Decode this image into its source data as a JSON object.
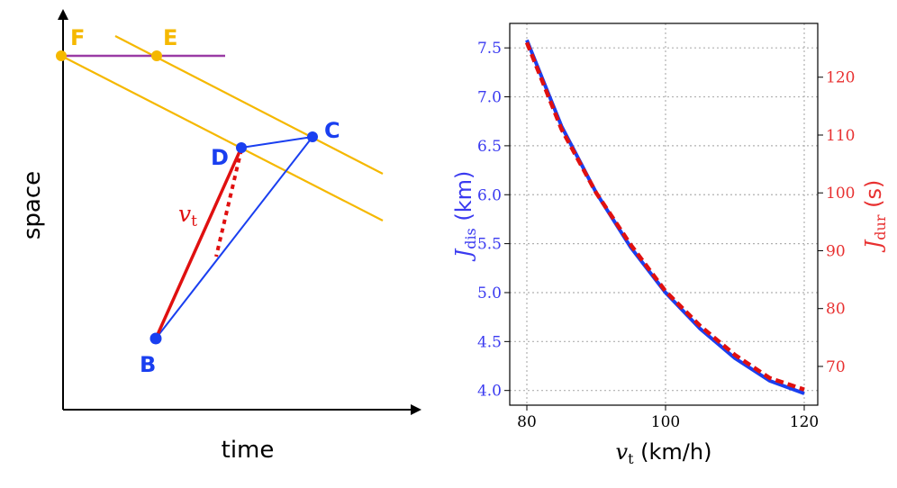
{
  "colors": {
    "orange": "#F5B800",
    "purple": "#9A3BA5",
    "blue": "#1A3FF0",
    "red": "#E01010",
    "blue_text": "#3A3AF0",
    "red_text": "#E83030",
    "grid": "#B0B0B0"
  },
  "diagram": {
    "xlabel": "time",
    "ylabel": "space",
    "points": {
      "F": "F",
      "E": "E",
      "C": "C",
      "D": "D",
      "B": "B"
    },
    "vt_main": "v",
    "vt_sub": "t"
  },
  "chart_data": {
    "type": "line",
    "x_min": 80,
    "x_max": 120,
    "x": [
      80,
      85,
      90,
      95,
      100,
      105,
      110,
      115,
      120
    ],
    "series": [
      {
        "name": "J_dis",
        "axis": "left",
        "unit": "km",
        "color": "#1A3FF0",
        "style": "solid",
        "values": [
          7.58,
          6.7,
          6.02,
          5.46,
          5.0,
          4.63,
          4.33,
          4.1,
          3.97
        ]
      },
      {
        "name": "J_dur",
        "axis": "right",
        "unit": "s",
        "color": "#E01010",
        "style": "dashed",
        "values": [
          126.0,
          111.0,
          100.0,
          91.0,
          83.0,
          77.0,
          72.0,
          68.0,
          66.0
        ]
      }
    ],
    "x_ticks": [
      "80",
      "100",
      "120"
    ],
    "x_tick_values": [
      80,
      100,
      120
    ],
    "y_left_range": [
      3.85,
      7.75
    ],
    "y_left_ticks": [
      "4.0",
      "4.5",
      "5.0",
      "5.5",
      "6.0",
      "6.5",
      "7.0",
      "7.5"
    ],
    "y_left_tick_values": [
      4.0,
      4.5,
      5.0,
      5.5,
      6.0,
      6.5,
      7.0,
      7.5
    ],
    "y_right_range": [
      63.3,
      129.3
    ],
    "y_right_ticks": [
      "70",
      "80",
      "90",
      "100",
      "110",
      "120"
    ],
    "y_right_tick_values": [
      70,
      80,
      90,
      100,
      110,
      120
    ],
    "xlabel_main": "v",
    "xlabel_sub": "t",
    "xlabel_unit": " (km/h)",
    "ylabel_left_main": "J",
    "ylabel_left_sub": "dis",
    "ylabel_left_unit": " (km)",
    "ylabel_right_main": "J",
    "ylabel_right_sub": "dur",
    "ylabel_right_unit": " (s)",
    "grid": true
  }
}
